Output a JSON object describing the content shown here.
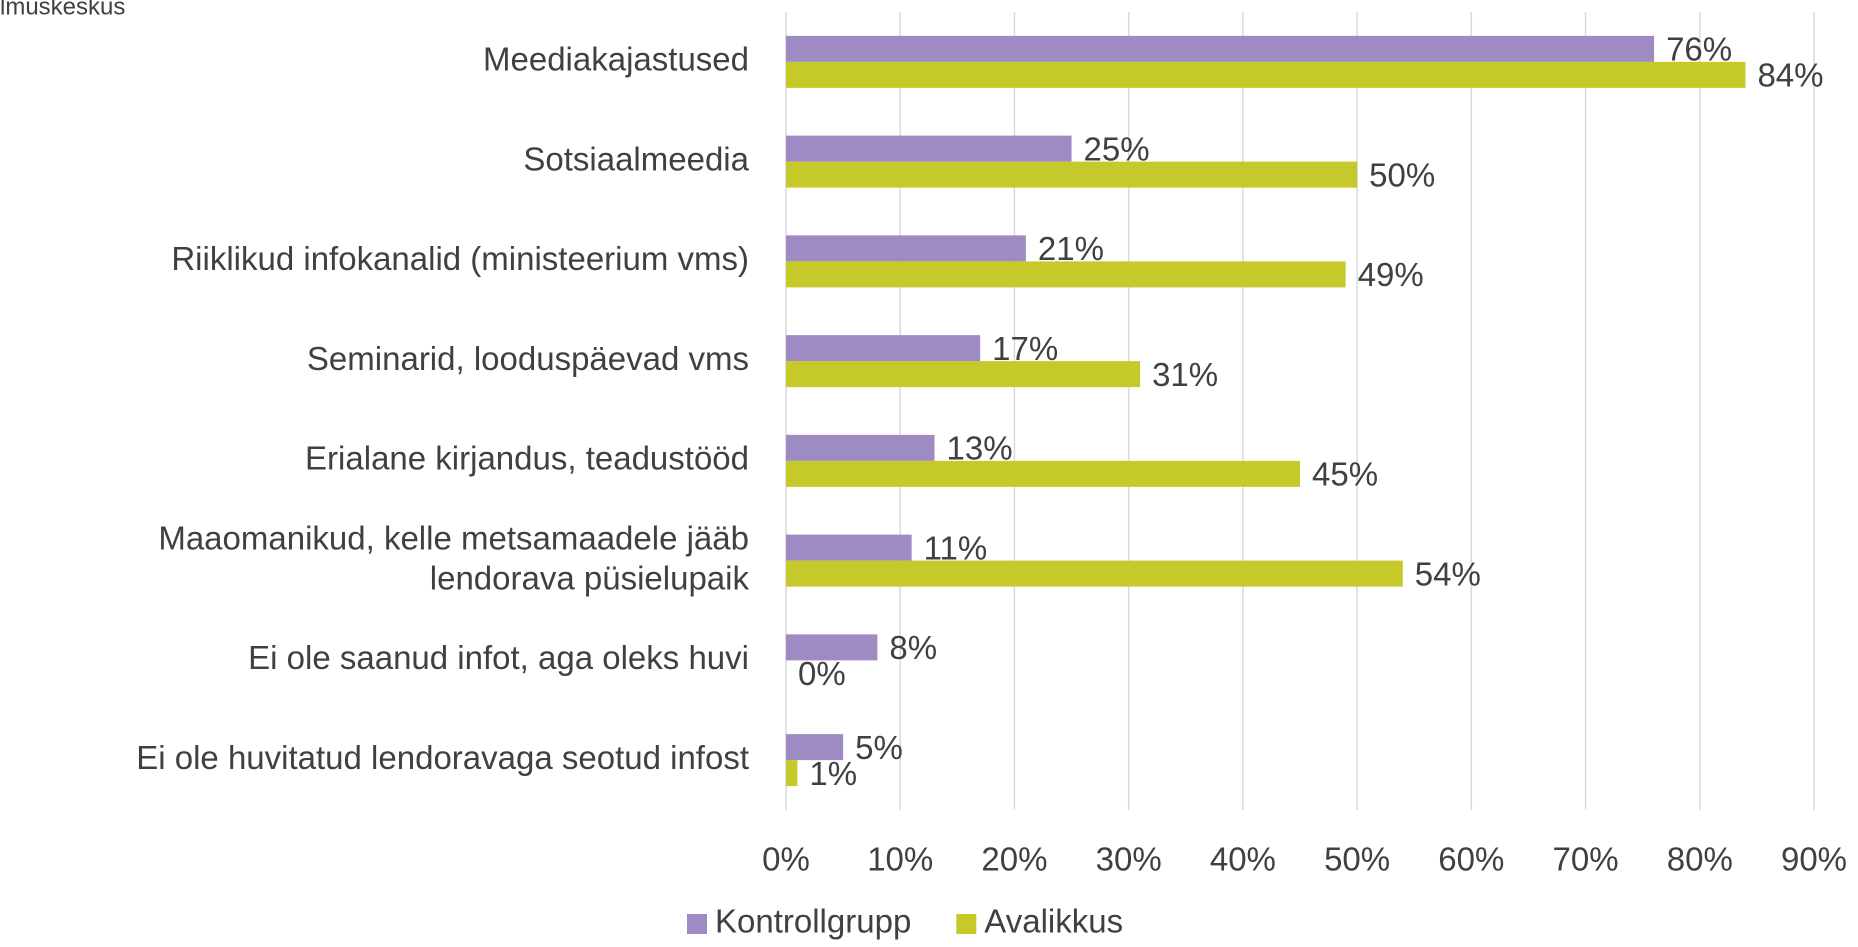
{
  "chart_data": {
    "type": "hbar",
    "note": "lmuskeskus",
    "categories": [
      "Meediakajastused",
      "Sotsiaalmeedia",
      "Riiklikud infokanalid (ministeerium vms)",
      "Seminarid, looduspäevad vms",
      "Erialane kirjandus, teadustööd",
      "Maaomanikud, kelle metsamaadele jääb\nlendorava püsielupaik",
      "Ei ole saanud infot, aga oleks huvi",
      "Ei ole huvitatud lendoravaga seotud infost"
    ],
    "series": [
      {
        "name": "Kontrollgrupp",
        "color": "#9e8bc4",
        "values": [
          76,
          25,
          21,
          17,
          13,
          11,
          8,
          5
        ],
        "value_labels": [
          "76%",
          "25%",
          "21%",
          "17%",
          "13%",
          "11%",
          "8%",
          "5%"
        ]
      },
      {
        "name": "Avalikkus",
        "color": "#c5c92a",
        "values": [
          84,
          50,
          49,
          31,
          45,
          54,
          0,
          1
        ],
        "value_labels": [
          "84%",
          "50%",
          "49%",
          "31%",
          "45%",
          "54%",
          "0%",
          "1%"
        ]
      }
    ],
    "xlim": [
      0,
      90
    ],
    "xticks": [
      {
        "value": 0,
        "label": "0%"
      },
      {
        "value": 10,
        "label": "10%"
      },
      {
        "value": 20,
        "label": "20%"
      },
      {
        "value": 30,
        "label": "30%"
      },
      {
        "value": 40,
        "label": "40%"
      },
      {
        "value": 50,
        "label": "50%"
      },
      {
        "value": 60,
        "label": "60%"
      },
      {
        "value": 70,
        "label": "70%"
      },
      {
        "value": 80,
        "label": "80%"
      },
      {
        "value": 90,
        "label": "90%"
      }
    ],
    "grid": true,
    "legend": "bottom"
  }
}
